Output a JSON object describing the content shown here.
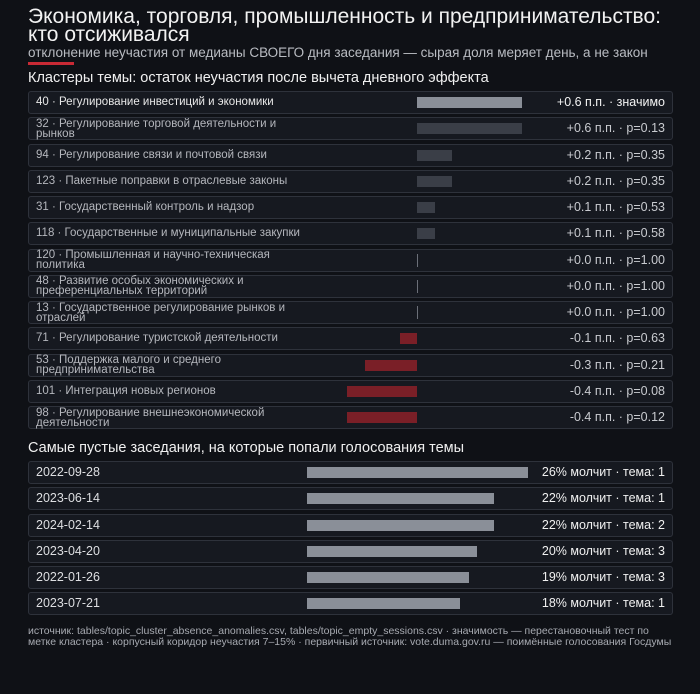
{
  "title": "Экономика, торговля, промышленность и предпринимательство: кто отсиживался",
  "subtitle": "отклонение неучастия от медианы СВОЕГО дня заседания — сырая доля меряет день, а не закон",
  "colors": {
    "accent": "#c92a35",
    "bar_significant": "#8a8f98",
    "bar_positive": "#3a3e47",
    "bar_negative": "#7a1f27"
  },
  "chart_data": [
    {
      "type": "bar",
      "title": "Кластеры темы: остаток неучастия после вычета дневного эффекта",
      "categories": [
        "40 · Регулирование инвестиций и экономики",
        "32 · Регулирование торговой деятельности и рынков",
        "94 · Регулирование связи и почтовой связи",
        "123 · Пакетные поправки в отраслевые законы",
        "31 · Государственный контроль и надзор",
        "118 · Государственные и муниципальные закупки",
        "120 · Промышленная и научно-техническая политика",
        "48 · Развитие особых экономических и преференциальных территорий",
        "13 · Государственное регулирование рынков и отраслей",
        "71 · Регулирование туристской деятельности",
        "53 · Поддержка малого и среднего предпринимательства",
        "101 · Интеграция новых регионов",
        "98 · Регулирование внешнеэкономической деятельности"
      ],
      "values": [
        0.6,
        0.6,
        0.2,
        0.2,
        0.1,
        0.1,
        0.0,
        0.0,
        0.0,
        -0.1,
        -0.3,
        -0.4,
        -0.4
      ],
      "value_labels": [
        "+0.6 п.п. · значимо",
        "+0.6 п.п. · p=0.13",
        "+0.2 п.п. · p=0.35",
        "+0.2 п.п. · p=0.35",
        "+0.1 п.п. · p=0.53",
        "+0.1 п.п. · p=0.58",
        "+0.0 п.п. · p=1.00",
        "+0.0 п.п. · p=1.00",
        "+0.0 п.п. · p=1.00",
        "-0.1 п.п. · p=0.63",
        "-0.3 п.п. · p=0.21",
        "-0.4 п.п. · p=0.08",
        "-0.4 п.п. · p=0.12"
      ],
      "significant": [
        true,
        false,
        false,
        false,
        false,
        false,
        false,
        false,
        false,
        false,
        false,
        false,
        false
      ]
    },
    {
      "type": "bar",
      "title": "Самые пустые заседания, на которые попали голосования темы",
      "categories": [
        "2022-09-28",
        "2023-06-14",
        "2024-02-14",
        "2023-04-20",
        "2022-01-26",
        "2023-07-21"
      ],
      "values": [
        26,
        22,
        22,
        20,
        19,
        18
      ],
      "topics": [
        1,
        1,
        2,
        3,
        3,
        1
      ],
      "value_labels": [
        "26% молчит · тема: 1",
        "22% молчит · тема: 1",
        "22% молчит · тема: 2",
        "20% молчит · тема: 3",
        "19% молчит · тема: 3",
        "18% молчит · тема: 1"
      ]
    }
  ],
  "source": "источник: tables/topic_cluster_absence_anomalies.csv, tables/topic_empty_sessions.csv · значимость — перестановочный тест по метке кластера · корпусный коридор неучастия 7–15% · первичный источник: vote.duma.gov.ru — поимённые голосования Госдумы"
}
